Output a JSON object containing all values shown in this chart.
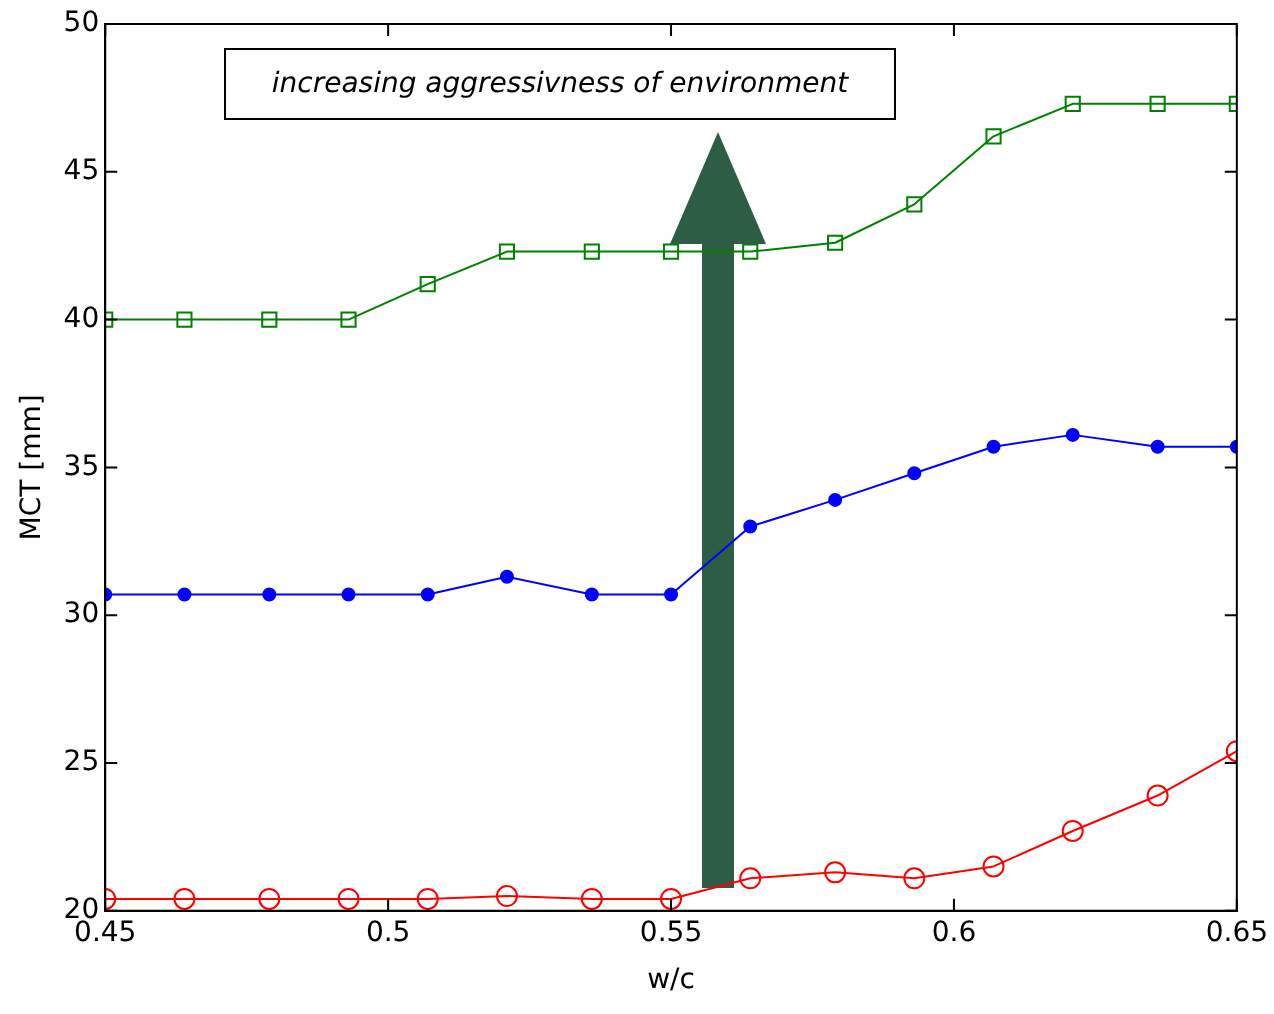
{
  "chart_data": {
    "type": "line",
    "xlabel": "w/c",
    "ylabel": "MCT [mm]",
    "x": [
      0.45,
      0.464,
      0.479,
      0.493,
      0.507,
      0.521,
      0.536,
      0.55,
      0.564,
      0.579,
      0.593,
      0.607,
      0.621,
      0.636,
      0.65
    ],
    "series": [
      {
        "color": "#008000",
        "marker": "square",
        "values": [
          40.0,
          40.0,
          40.0,
          40.0,
          41.2,
          42.3,
          42.3,
          42.3,
          42.3,
          42.6,
          43.9,
          46.2,
          47.3,
          47.3,
          47.3
        ]
      },
      {
        "color": "#0000ff",
        "marker": "circle",
        "values": [
          30.7,
          30.7,
          30.7,
          30.7,
          30.7,
          31.3,
          30.7,
          30.7,
          33.0,
          33.9,
          34.8,
          35.7,
          36.1,
          35.7,
          35.7
        ]
      },
      {
        "color": "#ff0000",
        "marker": "circle",
        "values": [
          20.4,
          20.4,
          20.4,
          20.4,
          20.4,
          20.5,
          20.4,
          20.4,
          21.1,
          21.3,
          21.1,
          21.5,
          22.7,
          23.9,
          25.4
        ]
      }
    ],
    "xlim": [
      0.45,
      0.65
    ],
    "xticks": [
      0.45,
      0.5,
      0.55,
      0.6,
      0.65
    ],
    "ylim": [
      20,
      50
    ],
    "yticks": [
      20,
      25,
      30,
      35,
      40,
      45,
      50
    ],
    "annotations": [
      "increasing aggressivness of environment"
    ],
    "grid": false,
    "legend": false,
    "line_style": "solid"
  }
}
